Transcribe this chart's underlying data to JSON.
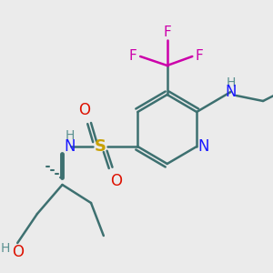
{
  "bg_color": "#ebebeb",
  "bond_color": "#3d7070",
  "bond_width": 1.8,
  "atom_colors": {
    "N": "#1a1aff",
    "O": "#dd1100",
    "S": "#c8a000",
    "F": "#cc00aa",
    "H": "#5a9090",
    "C": "#3d7070"
  }
}
